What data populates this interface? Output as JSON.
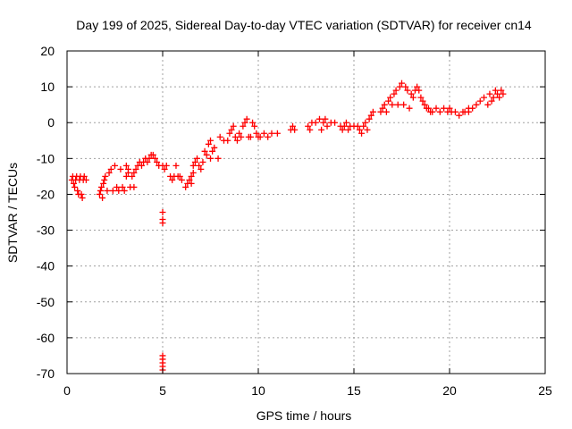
{
  "chart_data": {
    "type": "scatter",
    "title": "Day 199 of 2025, Sidereal Day-to-day VTEC variation (SDTVAR) for receiver cn14",
    "xlabel": "GPS time / hours",
    "ylabel": "SDTVAR / TECUs",
    "xlim": [
      0,
      25
    ],
    "ylim": [
      -70,
      20
    ],
    "xticks": [
      0,
      5,
      10,
      15,
      20,
      25
    ],
    "yticks": [
      -70,
      -60,
      -50,
      -40,
      -30,
      -20,
      -10,
      0,
      10,
      20
    ],
    "grid": true,
    "marker": "plus",
    "color": "#ff0000",
    "series": [
      {
        "name": "SDTVAR",
        "points": [
          [
            0.25,
            -16
          ],
          [
            0.3,
            -15
          ],
          [
            0.35,
            -17
          ],
          [
            0.4,
            -18
          ],
          [
            0.45,
            -16
          ],
          [
            0.5,
            -15
          ],
          [
            0.55,
            -19
          ],
          [
            0.6,
            -20
          ],
          [
            0.65,
            -16
          ],
          [
            0.7,
            -15
          ],
          [
            0.75,
            -20
          ],
          [
            0.8,
            -21
          ],
          [
            0.85,
            -16
          ],
          [
            0.9,
            -15
          ],
          [
            1.0,
            -16
          ],
          [
            1.7,
            -20
          ],
          [
            1.75,
            -19
          ],
          [
            1.8,
            -18
          ],
          [
            1.85,
            -21
          ],
          [
            1.9,
            -17
          ],
          [
            1.95,
            -16
          ],
          [
            2.0,
            -15
          ],
          [
            2.1,
            -19
          ],
          [
            2.2,
            -14
          ],
          [
            2.3,
            -13
          ],
          [
            2.4,
            -19
          ],
          [
            2.5,
            -12
          ],
          [
            2.6,
            -18
          ],
          [
            2.7,
            -19
          ],
          [
            2.8,
            -13
          ],
          [
            2.9,
            -18
          ],
          [
            3.0,
            -19
          ],
          [
            3.1,
            -12
          ],
          [
            3.2,
            -13
          ],
          [
            3.3,
            -18
          ],
          [
            3.5,
            -18
          ],
          [
            3.1,
            -15
          ],
          [
            3.2,
            -14
          ],
          [
            3.4,
            -15
          ],
          [
            3.5,
            -14
          ],
          [
            3.6,
            -13
          ],
          [
            3.7,
            -12
          ],
          [
            3.8,
            -11
          ],
          [
            3.9,
            -12
          ],
          [
            4.0,
            -11
          ],
          [
            4.1,
            -10
          ],
          [
            4.2,
            -11
          ],
          [
            4.3,
            -10
          ],
          [
            4.4,
            -9
          ],
          [
            4.5,
            -9
          ],
          [
            4.6,
            -10
          ],
          [
            4.7,
            -11
          ],
          [
            4.8,
            -12
          ],
          [
            5.0,
            -25
          ],
          [
            5.0,
            -27
          ],
          [
            5.0,
            -28
          ],
          [
            5.0,
            -65
          ],
          [
            5.0,
            -66
          ],
          [
            5.0,
            -67
          ],
          [
            5.0,
            -68
          ],
          [
            5.0,
            -69
          ],
          [
            5.0,
            -12
          ],
          [
            5.1,
            -13
          ],
          [
            5.2,
            -12
          ],
          [
            5.4,
            -15
          ],
          [
            5.5,
            -16
          ],
          [
            5.6,
            -15
          ],
          [
            5.7,
            -12
          ],
          [
            5.8,
            -15
          ],
          [
            5.9,
            -15
          ],
          [
            6.0,
            -16
          ],
          [
            6.2,
            -18
          ],
          [
            6.3,
            -17
          ],
          [
            6.4,
            -16
          ],
          [
            6.5,
            -15
          ],
          [
            6.6,
            -14
          ],
          [
            6.5,
            -17
          ],
          [
            6.6,
            -12
          ],
          [
            6.7,
            -11
          ],
          [
            6.8,
            -10
          ],
          [
            6.9,
            -12
          ],
          [
            7.0,
            -13
          ],
          [
            7.1,
            -11
          ],
          [
            7.2,
            -8
          ],
          [
            7.3,
            -9
          ],
          [
            7.4,
            -6
          ],
          [
            7.5,
            -5
          ],
          [
            7.5,
            -10
          ],
          [
            7.6,
            -8
          ],
          [
            7.7,
            -7
          ],
          [
            7.9,
            -10
          ],
          [
            8.0,
            -4
          ],
          [
            8.2,
            -5
          ],
          [
            8.4,
            -5
          ],
          [
            8.5,
            -3
          ],
          [
            8.6,
            -2
          ],
          [
            8.7,
            -1
          ],
          [
            8.8,
            -4
          ],
          [
            8.9,
            -5
          ],
          [
            9.0,
            -3
          ],
          [
            9.1,
            -4
          ],
          [
            9.2,
            -1
          ],
          [
            9.3,
            0
          ],
          [
            9.4,
            1
          ],
          [
            9.5,
            -4
          ],
          [
            9.6,
            -4
          ],
          [
            9.7,
            0
          ],
          [
            9.8,
            -1
          ],
          [
            9.9,
            -3
          ],
          [
            10.0,
            -4
          ],
          [
            10.1,
            -4
          ],
          [
            10.3,
            -3
          ],
          [
            10.5,
            -4
          ],
          [
            10.7,
            -3
          ],
          [
            11.0,
            -3
          ],
          [
            11.7,
            -2
          ],
          [
            11.8,
            -1
          ],
          [
            11.9,
            -2
          ],
          [
            12.6,
            -1
          ],
          [
            12.7,
            -2
          ],
          [
            12.8,
            0
          ],
          [
            13.0,
            0
          ],
          [
            13.2,
            1
          ],
          [
            13.3,
            -2
          ],
          [
            13.4,
            0
          ],
          [
            13.5,
            1
          ],
          [
            13.6,
            -1
          ],
          [
            13.8,
            0
          ],
          [
            14.0,
            0
          ],
          [
            14.3,
            -1
          ],
          [
            14.4,
            -2
          ],
          [
            14.5,
            -1
          ],
          [
            14.6,
            0
          ],
          [
            14.7,
            -2
          ],
          [
            14.8,
            -1
          ],
          [
            15.0,
            -1
          ],
          [
            15.2,
            -1
          ],
          [
            15.3,
            -2
          ],
          [
            15.4,
            -3
          ],
          [
            15.5,
            -1
          ],
          [
            15.6,
            0
          ],
          [
            15.7,
            -2
          ],
          [
            15.8,
            1
          ],
          [
            15.9,
            2
          ],
          [
            16.0,
            3
          ],
          [
            16.4,
            3
          ],
          [
            16.5,
            4
          ],
          [
            16.6,
            5
          ],
          [
            16.7,
            3
          ],
          [
            16.8,
            6
          ],
          [
            16.9,
            7
          ],
          [
            17.0,
            5
          ],
          [
            17.1,
            8
          ],
          [
            17.2,
            9
          ],
          [
            17.3,
            5
          ],
          [
            17.4,
            10
          ],
          [
            17.5,
            11
          ],
          [
            17.6,
            5
          ],
          [
            17.7,
            10
          ],
          [
            17.8,
            9
          ],
          [
            17.9,
            4
          ],
          [
            18.0,
            8
          ],
          [
            18.1,
            7
          ],
          [
            18.2,
            9
          ],
          [
            18.3,
            10
          ],
          [
            18.4,
            9
          ],
          [
            18.5,
            7
          ],
          [
            18.6,
            6
          ],
          [
            18.7,
            5
          ],
          [
            18.8,
            4
          ],
          [
            18.9,
            4
          ],
          [
            19.0,
            3
          ],
          [
            19.1,
            3
          ],
          [
            19.3,
            4
          ],
          [
            19.5,
            3
          ],
          [
            19.7,
            4
          ],
          [
            19.9,
            3
          ],
          [
            20.0,
            4
          ],
          [
            20.1,
            3
          ],
          [
            20.3,
            3
          ],
          [
            20.5,
            2
          ],
          [
            20.7,
            3
          ],
          [
            21.0,
            4
          ],
          [
            20.8,
            3
          ],
          [
            21.0,
            3
          ],
          [
            21.2,
            4
          ],
          [
            21.4,
            5
          ],
          [
            21.6,
            6
          ],
          [
            21.8,
            7
          ],
          [
            22.0,
            5
          ],
          [
            22.1,
            8
          ],
          [
            22.2,
            6
          ],
          [
            22.3,
            7
          ],
          [
            22.4,
            9
          ],
          [
            22.5,
            8
          ],
          [
            22.6,
            7
          ],
          [
            22.7,
            9
          ],
          [
            22.8,
            8
          ]
        ]
      }
    ]
  }
}
